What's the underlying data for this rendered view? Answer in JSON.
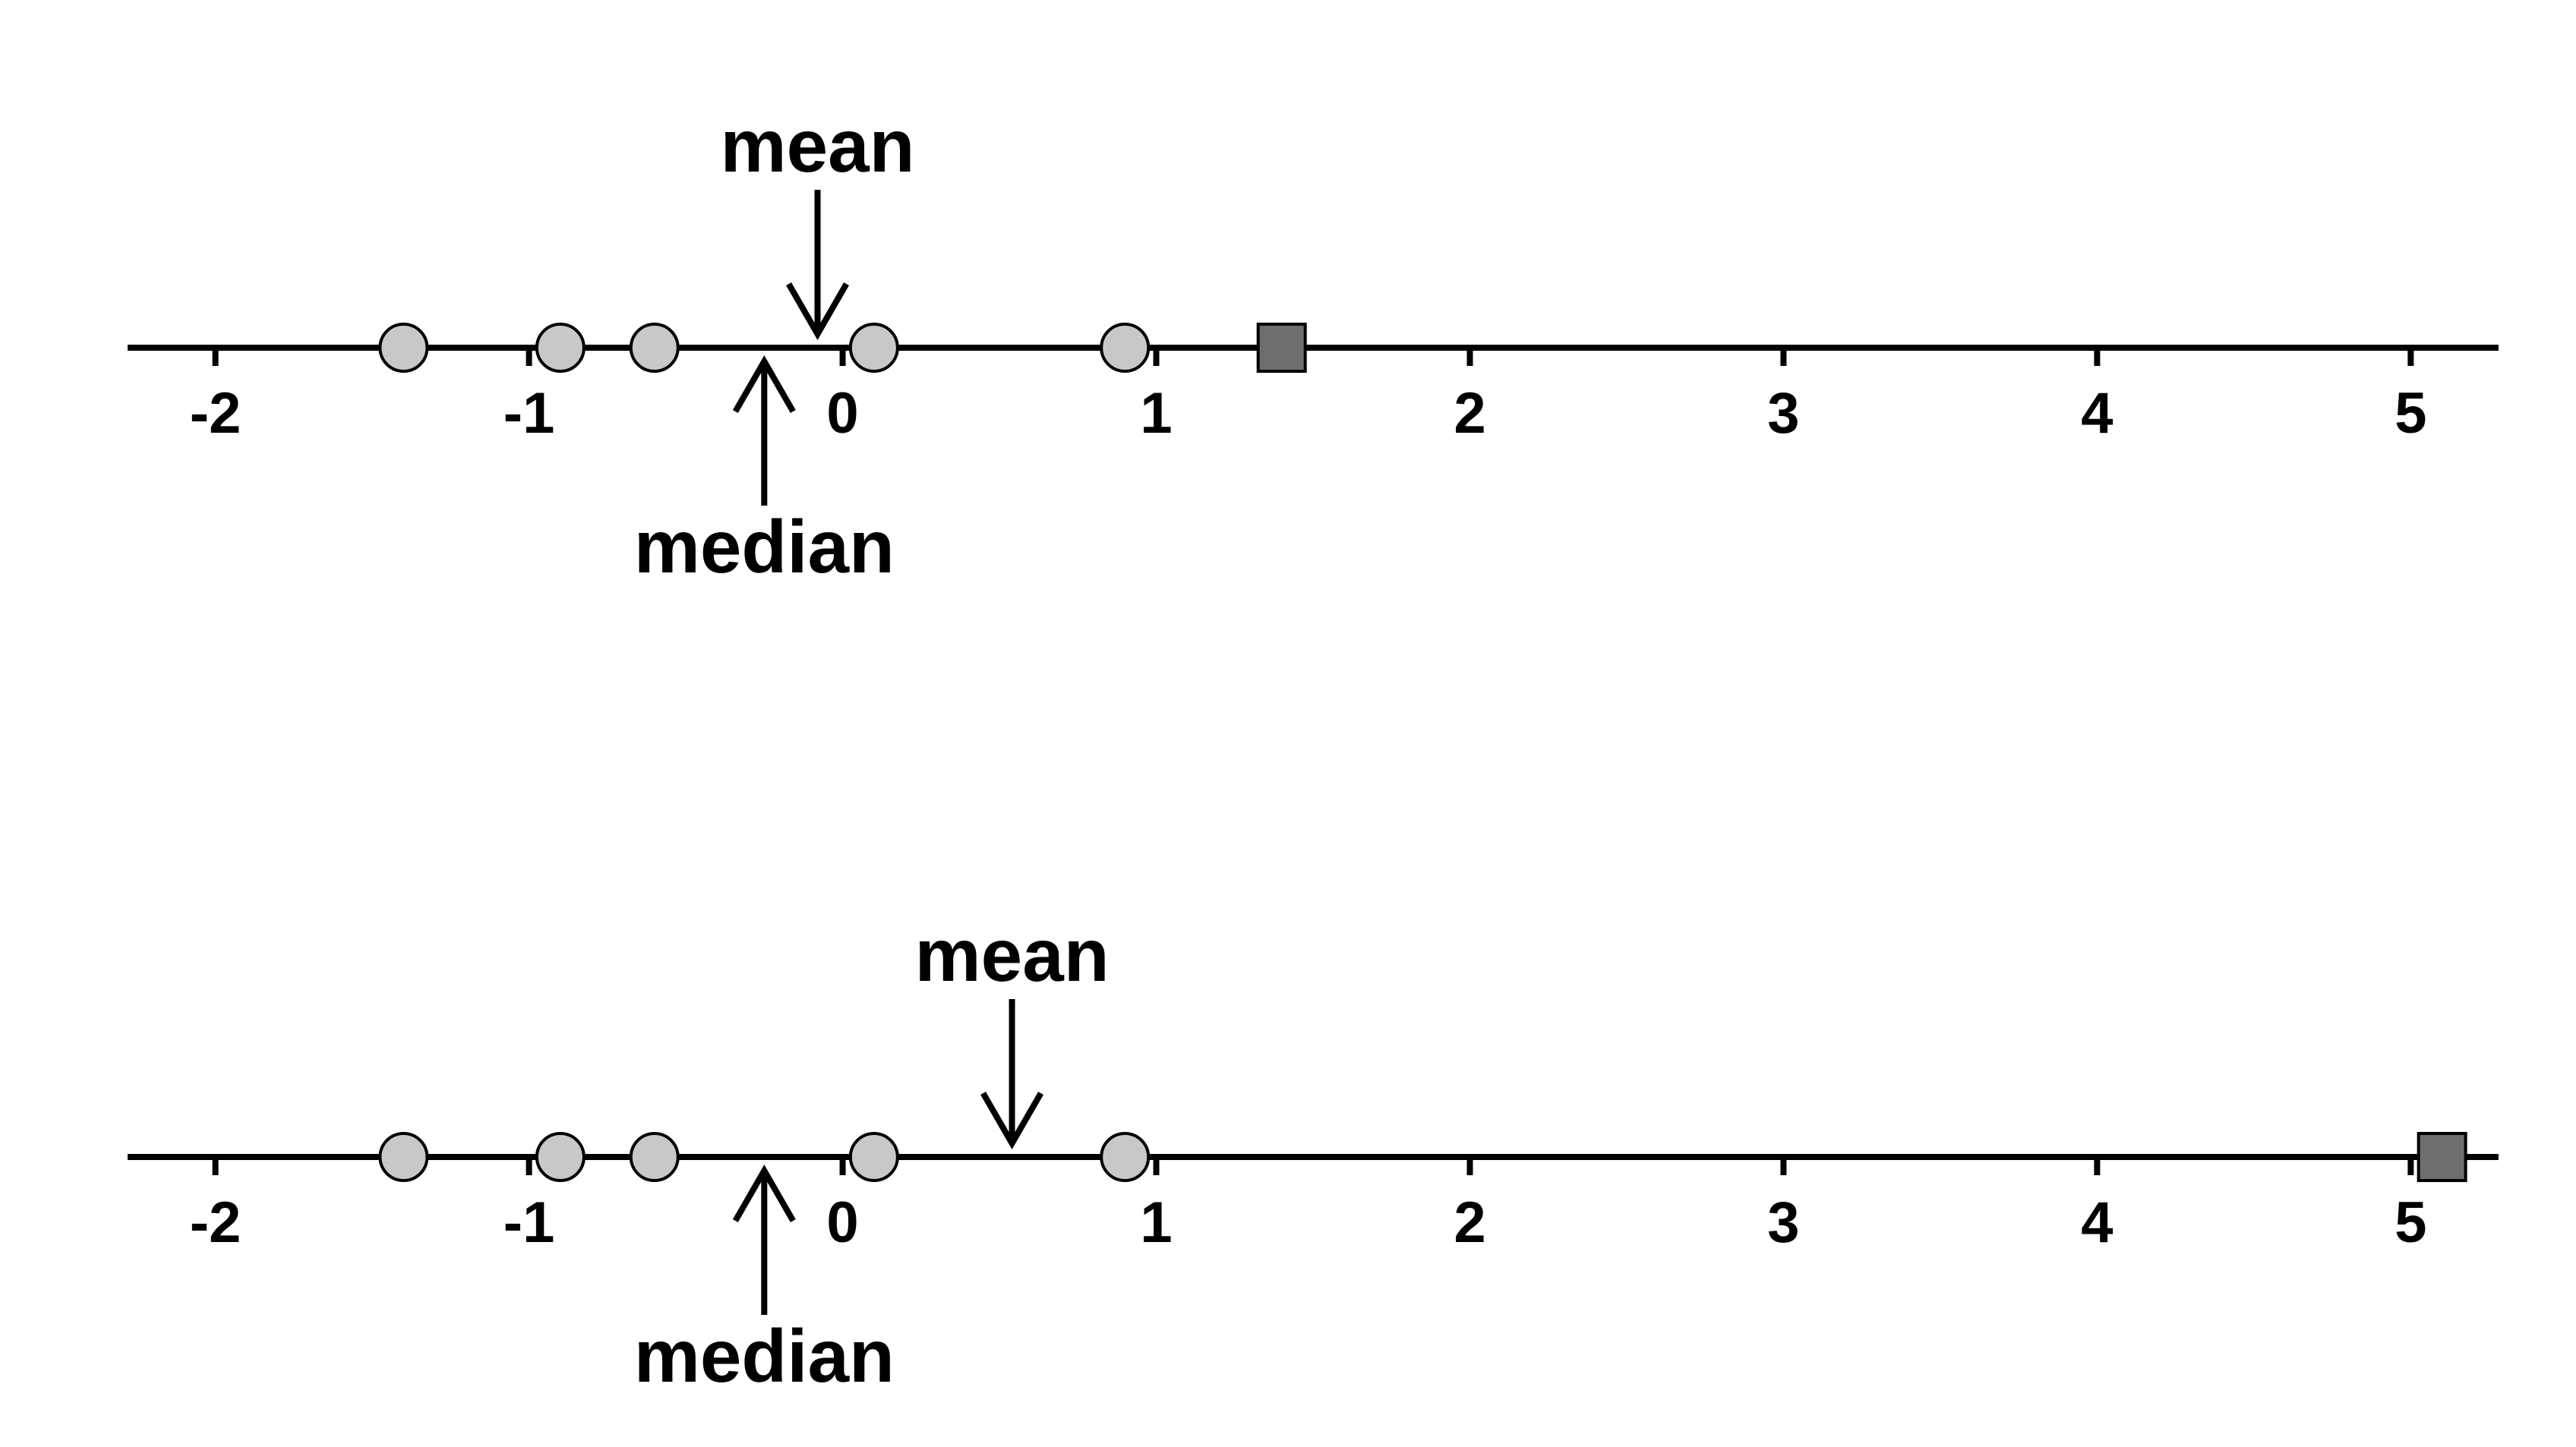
{
  "colors": {
    "axis": "#000000",
    "circle_fill": "#c8c8c8",
    "square_fill": "#6e6e6e",
    "outline": "#000000",
    "background": "#ffffff"
  },
  "panels": [
    {
      "id": "top",
      "axis_range": [
        -2.28,
        5.28
      ],
      "ticks": [
        {
          "value": -2,
          "label": "-2"
        },
        {
          "value": -1,
          "label": "-1"
        },
        {
          "value": 0,
          "label": "0"
        },
        {
          "value": 1,
          "label": "1"
        },
        {
          "value": 2,
          "label": "2"
        },
        {
          "value": 3,
          "label": "3"
        },
        {
          "value": 4,
          "label": "4"
        },
        {
          "value": 5,
          "label": "5"
        }
      ],
      "circle_values": [
        -1.4,
        -0.9,
        -0.6,
        0.1,
        0.9
      ],
      "square_value": 1.4,
      "mean": {
        "value": -0.08,
        "label": "mean"
      },
      "median": {
        "value": -0.25,
        "label": "median"
      }
    },
    {
      "id": "bottom",
      "axis_range": [
        -2.28,
        5.28
      ],
      "ticks": [
        {
          "value": -2,
          "label": "-2"
        },
        {
          "value": -1,
          "label": "-1"
        },
        {
          "value": 0,
          "label": "0"
        },
        {
          "value": 1,
          "label": "1"
        },
        {
          "value": 2,
          "label": "2"
        },
        {
          "value": 3,
          "label": "3"
        },
        {
          "value": 4,
          "label": "4"
        },
        {
          "value": 5,
          "label": "5"
        }
      ],
      "circle_values": [
        -1.4,
        -0.9,
        -0.6,
        0.1,
        0.9
      ],
      "square_value": 5.1,
      "mean": {
        "value": 0.54,
        "label": "mean"
      },
      "median": {
        "value": -0.25,
        "label": "median"
      }
    }
  ]
}
